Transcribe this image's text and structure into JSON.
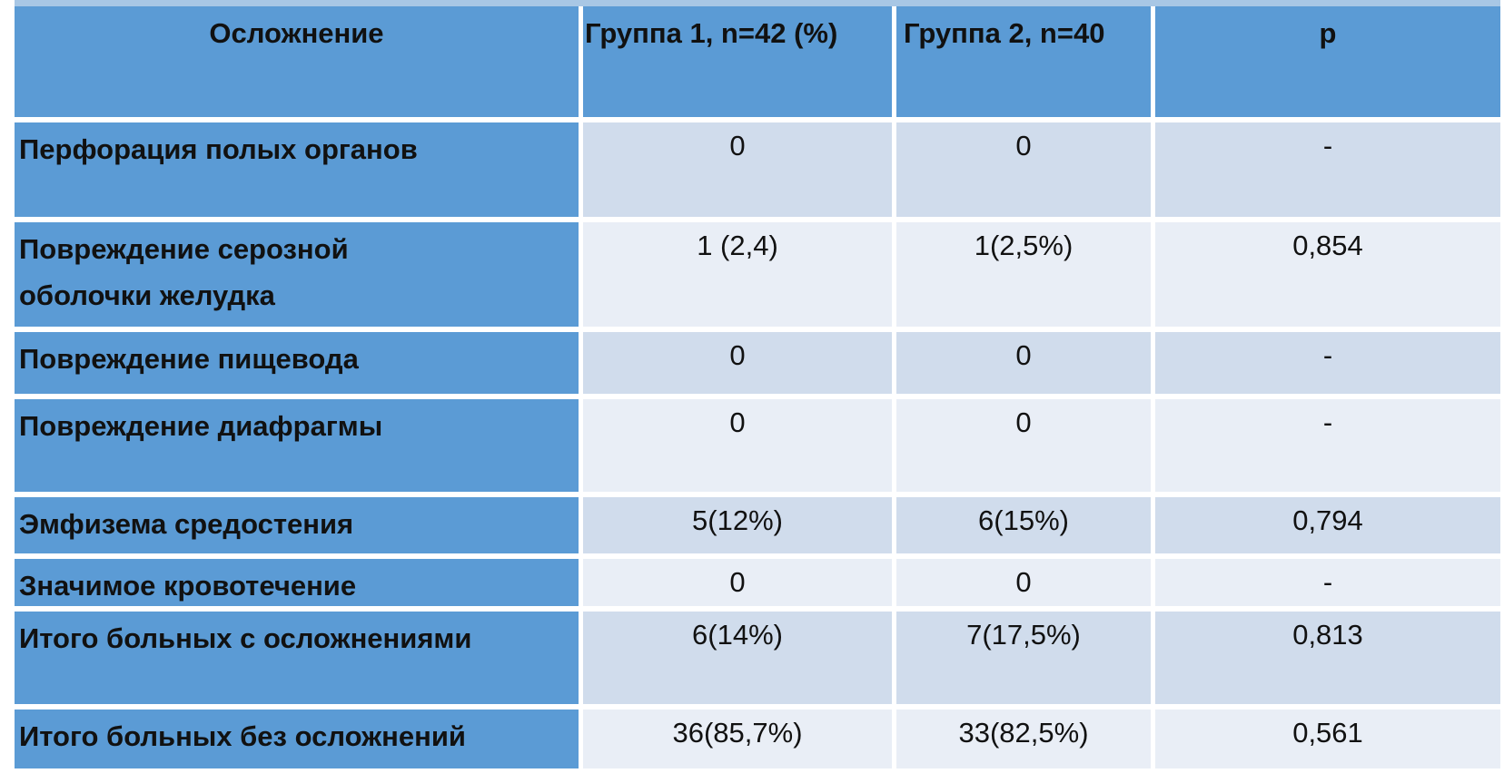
{
  "chart_data": {
    "type": "table",
    "columns": [
      "Осложнение",
      "Группа 1, n=42 (%)",
      "Группа 2, n=40",
      "p"
    ],
    "rows": [
      {
        "label": "Перфорация полых органов",
        "g1": "0",
        "g2": "0",
        "p": "-"
      },
      {
        "label": "Повреждение серозной оболочки желудка",
        "g1": "1 (2,4)",
        "g2": "1(2,5%)",
        "p": "0,854"
      },
      {
        "label": "Повреждение пищевода",
        "g1": "0",
        "g2": "0",
        "p": "-"
      },
      {
        "label": "Повреждение диафрагмы",
        "g1": "0",
        "g2": "0",
        "p": "-"
      },
      {
        "label": "Эмфизема средостения",
        "g1": "5(12%)",
        "g2": "6(15%)",
        "p": "0,794"
      },
      {
        "label": "Значимое кровотечение",
        "g1": "0",
        "g2": "0",
        "p": "-"
      },
      {
        "label": "Итого больных с осложнениями",
        "g1": "6(14%)",
        "g2": "7(17,5%)",
        "p": "0,813"
      },
      {
        "label": "Итого больных без осложнений",
        "g1": "36(85,7%)",
        "g2": "33(82,5%)",
        "p": "0,561"
      }
    ],
    "layout": {
      "grid": "light gridlines between all cells",
      "header_fill": "#5b9bd5",
      "label_column_fill": "#5b9bd5",
      "band_row_odd_fill": "#d0dcec",
      "band_row_even_fill": "#e9eef6",
      "top_edge_color": "#a8c7e5",
      "text_color": "#111111"
    }
  }
}
